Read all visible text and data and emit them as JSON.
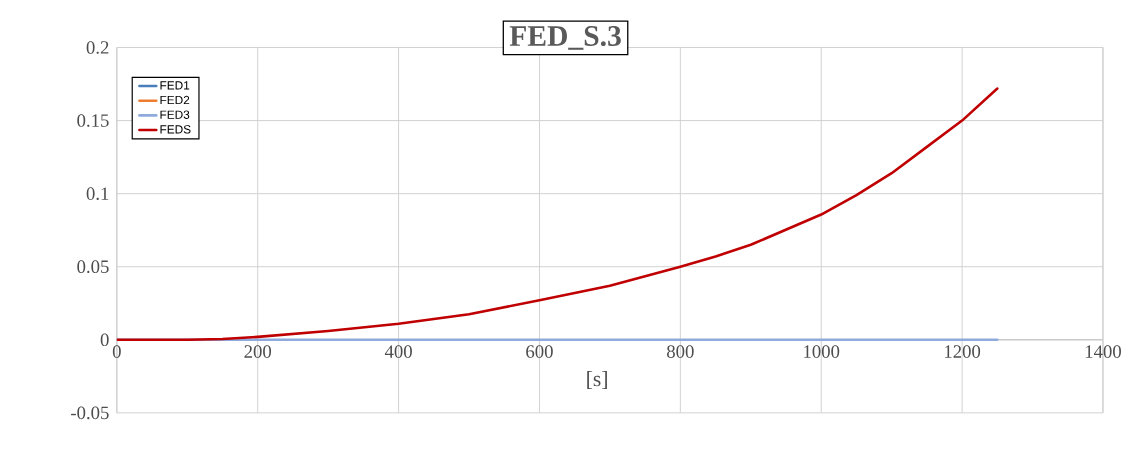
{
  "chart_data": {
    "type": "line",
    "title": "FED_S.3",
    "xlabel": "[s]",
    "xlim": [
      0,
      1400
    ],
    "xticks": [
      0,
      200,
      400,
      600,
      800,
      1000,
      1200,
      1400
    ],
    "ylim": [
      -0.05,
      0.2
    ],
    "yticks": [
      -0.05,
      0,
      0.05,
      0.1,
      0.15,
      0.2
    ],
    "grid": true,
    "legend": "top left",
    "marker": "none",
    "line_style": "solid",
    "x": [
      0,
      100,
      150,
      200,
      300,
      400,
      500,
      600,
      700,
      800,
      850,
      900,
      1000,
      1050,
      1100,
      1150,
      1200,
      1250
    ],
    "series": [
      {
        "name": "FED1",
        "color": "#4a7ebb",
        "values": [
          null,
          null,
          null,
          null,
          null,
          null,
          null,
          null,
          null,
          null,
          null,
          null,
          null,
          null,
          null,
          null,
          null,
          null
        ]
      },
      {
        "name": "FED2",
        "color": "#ed7d31",
        "values": [
          null,
          null,
          null,
          null,
          null,
          null,
          null,
          null,
          null,
          null,
          null,
          null,
          null,
          null,
          null,
          null,
          null,
          null
        ]
      },
      {
        "name": "FED3",
        "color": "#8faadc",
        "values": [
          0,
          0,
          0,
          0,
          0,
          0,
          0,
          0,
          0,
          0,
          0,
          0,
          0,
          0,
          0,
          0,
          0,
          0
        ]
      },
      {
        "name": "FEDS",
        "color": "#c00000",
        "values": [
          0,
          0,
          0.0005,
          0.002,
          0.006,
          0.011,
          0.0175,
          0.027,
          0.037,
          0.05,
          0.057,
          0.065,
          0.0857,
          0.099,
          0.114,
          0.132,
          0.15,
          0.172
        ]
      }
    ]
  }
}
